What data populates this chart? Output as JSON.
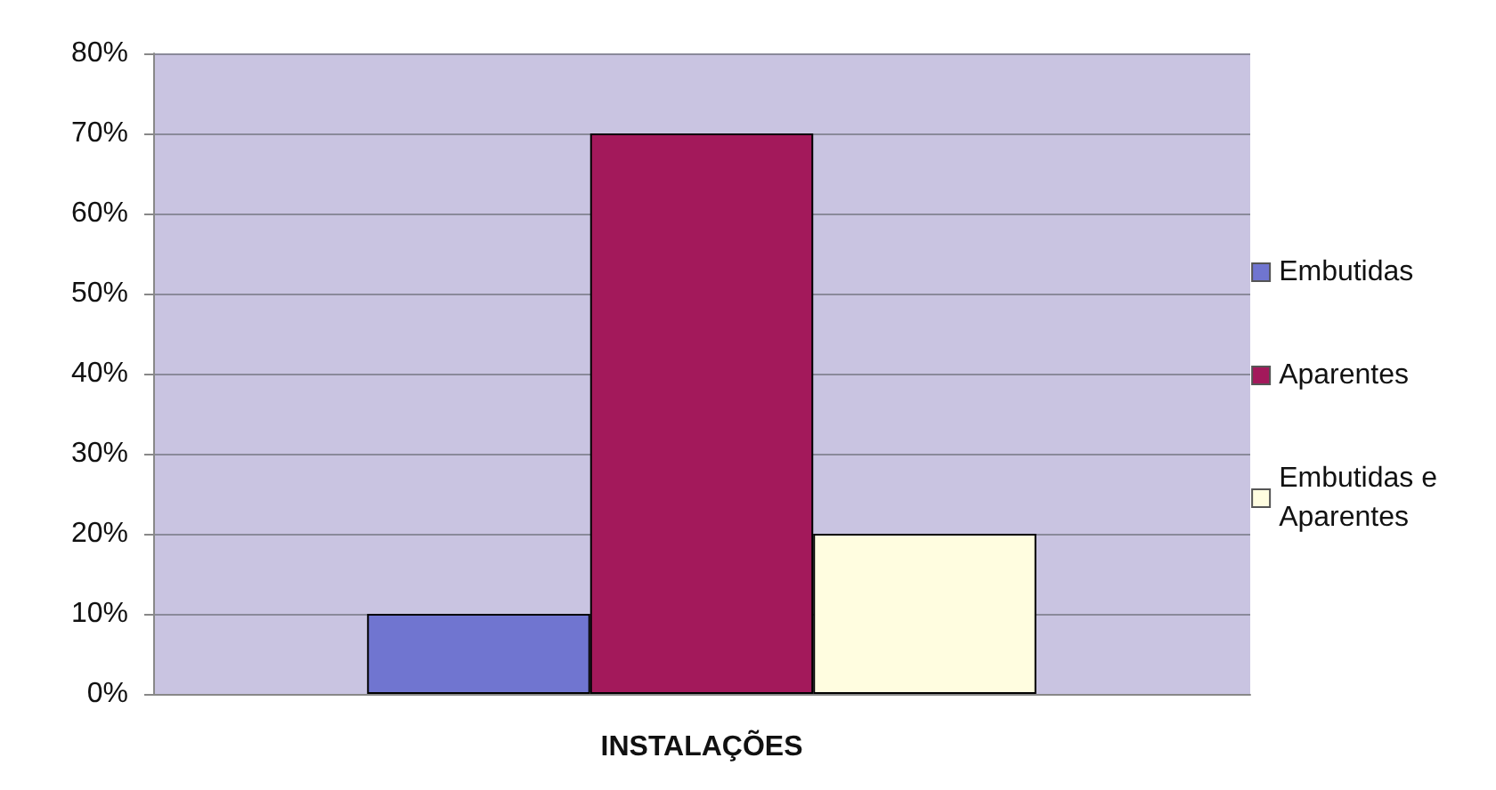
{
  "chart_data": {
    "type": "bar",
    "categories": [
      "INSTALAÇÕES"
    ],
    "series": [
      {
        "name": "Embutidas",
        "color": "#7075d0",
        "values": [
          10
        ]
      },
      {
        "name": "Aparentes",
        "color": "#a3195b",
        "values": [
          70
        ]
      },
      {
        "name": "Embutidas e\nAparentes",
        "color": "#fffde0",
        "values": [
          20
        ]
      }
    ],
    "ylim": [
      0,
      80
    ],
    "yticks": [
      {
        "value": 0,
        "label": "0%"
      },
      {
        "value": 10,
        "label": "10%"
      },
      {
        "value": 20,
        "label": "20%"
      },
      {
        "value": 30,
        "label": "30%"
      },
      {
        "value": 40,
        "label": "40%"
      },
      {
        "value": 50,
        "label": "50%"
      },
      {
        "value": 60,
        "label": "60%"
      },
      {
        "value": 70,
        "label": "70%"
      },
      {
        "value": 80,
        "label": "80%"
      }
    ],
    "grid": "y",
    "legend": "right"
  }
}
